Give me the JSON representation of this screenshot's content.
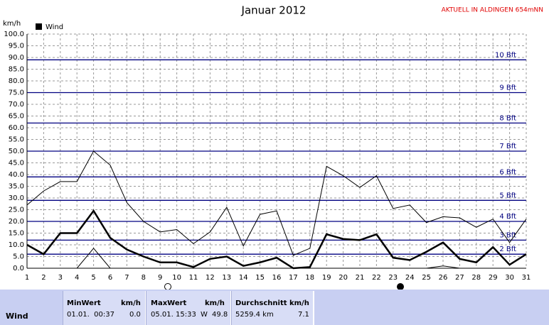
{
  "chart_data": {
    "type": "line",
    "title": "Januar 2012",
    "subtitle": "AKTUELL IN ALDINGEN 654mNN",
    "y_label": "km/h",
    "x": [
      1,
      2,
      3,
      4,
      5,
      6,
      7,
      8,
      9,
      10,
      11,
      12,
      13,
      14,
      15,
      16,
      17,
      18,
      19,
      20,
      21,
      22,
      23,
      24,
      25,
      26,
      27,
      28,
      29,
      30,
      31
    ],
    "xlim": [
      1,
      31
    ],
    "xticks": [
      1,
      2,
      3,
      4,
      5,
      6,
      7,
      8,
      9,
      10,
      11,
      12,
      13,
      14,
      15,
      16,
      17,
      18,
      19,
      20,
      21,
      22,
      23,
      24,
      25,
      26,
      27,
      28,
      29,
      30,
      31
    ],
    "ylim": [
      0,
      100
    ],
    "yticks": [
      {
        "value": 0,
        "label": "0.0"
      },
      {
        "value": 5,
        "label": "5.0"
      },
      {
        "value": 10,
        "label": "10.0"
      },
      {
        "value": 15,
        "label": "15.0"
      },
      {
        "value": 20,
        "label": "20.0"
      },
      {
        "value": 25,
        "label": "25.0"
      },
      {
        "value": 30,
        "label": "30.0"
      },
      {
        "value": 35,
        "label": "35.0"
      },
      {
        "value": 40,
        "label": "40.0"
      },
      {
        "value": 45,
        "label": "45.0"
      },
      {
        "value": 50,
        "label": "50.0"
      },
      {
        "value": 55,
        "label": "55.0"
      },
      {
        "value": 60,
        "label": "60.0"
      },
      {
        "value": 65,
        "label": "65.0"
      },
      {
        "value": 70,
        "label": "70.0"
      },
      {
        "value": 75,
        "label": "75.0"
      },
      {
        "value": 80,
        "label": "80.0"
      },
      {
        "value": 85,
        "label": "85.0"
      },
      {
        "value": 90,
        "label": "90.0"
      },
      {
        "value": 95,
        "label": "95.0"
      },
      {
        "value": 100,
        "label": "100.0"
      }
    ],
    "grid": true,
    "legend": "top-left",
    "series": [
      {
        "name": "Wind",
        "color": "#000000",
        "values": [
          10,
          6,
          15,
          15,
          24.5,
          13,
          8,
          5,
          2.5,
          2.5,
          0.5,
          4,
          5,
          1,
          2.5,
          4.5,
          0,
          0.5,
          14.5,
          12.5,
          12,
          14.5,
          4.5,
          3.5,
          7,
          11,
          4,
          2.5,
          9,
          1.5,
          6
        ]
      },
      {
        "color": "#000000",
        "values": [
          27,
          33,
          37,
          37,
          50,
          44,
          28,
          20,
          15.5,
          16.5,
          10.5,
          15.5,
          26,
          9.5,
          23,
          24.5,
          5.5,
          8.5,
          43.5,
          39.5,
          34.5,
          39.5,
          25.5,
          27,
          19.5,
          22,
          21.5,
          17.5,
          21,
          11,
          21
        ]
      },
      {
        "color": "#000000",
        "values": [
          null,
          null,
          null,
          0,
          8.5,
          0,
          0,
          0,
          0,
          0,
          0,
          0,
          0,
          0,
          0,
          0,
          0,
          0,
          0,
          0,
          0,
          0,
          0,
          0,
          0,
          1,
          0,
          0,
          0,
          0,
          0
        ]
      }
    ],
    "reference_lines": {
      "color": "#000080",
      "lines": [
        {
          "value": 6,
          "label": "2 Bft"
        },
        {
          "value": 12,
          "label": "3 Bft"
        },
        {
          "value": 20,
          "label": "4 Bft"
        },
        {
          "value": 29,
          "label": "5 Bft"
        },
        {
          "value": 39,
          "label": "6 Bft"
        },
        {
          "value": 50,
          "label": "7 Bft"
        },
        {
          "value": 62,
          "label": "8 Bft"
        },
        {
          "value": 75,
          "label": "9 Bft"
        },
        {
          "value": 89,
          "label": "10 Bft"
        }
      ]
    }
  },
  "table": {
    "header": [
      "MinWert",
      "km/h",
      "MaxWert",
      "km/h",
      "Durchschnitt km/h"
    ],
    "rows": [
      [
        "Wind",
        "01.01.  00:37",
        "0.0",
        "05.01. 15:33",
        "W",
        "49.8",
        "5259.4 km",
        "7.1"
      ]
    ]
  }
}
